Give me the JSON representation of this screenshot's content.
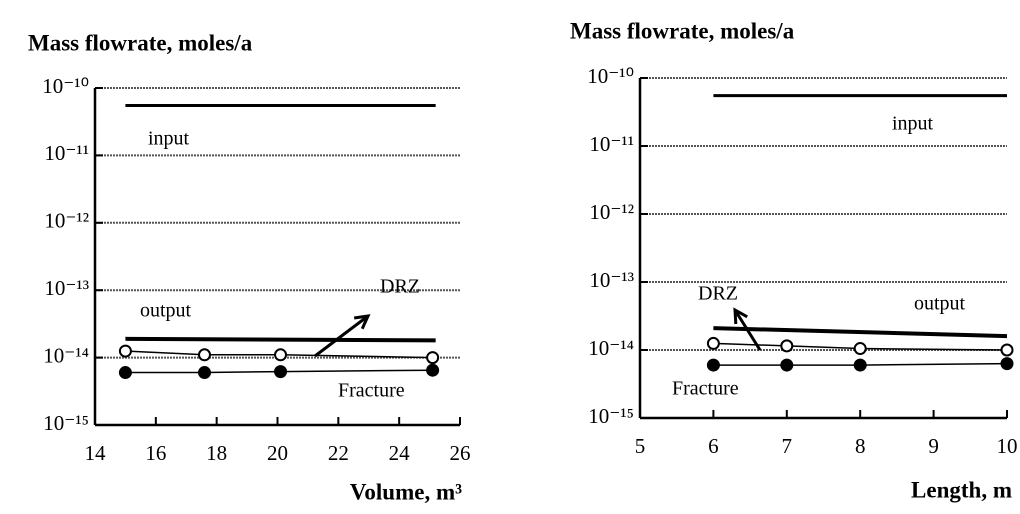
{
  "chart_data": [
    {
      "type": "line",
      "title": "Mass flowrate,  moles/a",
      "xlabel": "Volume, m³",
      "xlim": [
        14,
        26
      ],
      "xticks": [
        14,
        16,
        18,
        20,
        22,
        24,
        26
      ],
      "ylim": [
        1e-15,
        1e-10
      ],
      "ylog": true,
      "grid": true,
      "yticks": [
        {
          "value": 1e-15,
          "label": "10⁻¹⁵"
        },
        {
          "value": 1e-14,
          "label": "10⁻¹⁴"
        },
        {
          "value": 1e-13,
          "label": "10⁻¹³"
        },
        {
          "value": 1e-12,
          "label": "10⁻¹²"
        },
        {
          "value": 1e-11,
          "label": "10⁻¹¹"
        },
        {
          "value": 1e-10,
          "label": "10⁻¹⁰"
        }
      ],
      "series": [
        {
          "name": "input",
          "color": "#000000",
          "marker": "none",
          "x": [
            15,
            25.2
          ],
          "values": [
            5.5e-11,
            5.5e-11
          ]
        },
        {
          "name": "output",
          "color": "#000000",
          "marker": "none",
          "x": [
            15,
            25.2
          ],
          "values": [
            1.9e-14,
            1.8e-14
          ]
        },
        {
          "name": "DRZ",
          "color": "#000000",
          "marker": "open",
          "x": [
            15,
            17.6,
            20.1,
            25.1
          ],
          "values": [
            1.25e-14,
            1.1e-14,
            1.1e-14,
            1e-14
          ]
        },
        {
          "name": "Fracture",
          "color": "#000000",
          "marker": "filled",
          "x": [
            15,
            17.6,
            20.1,
            25.1
          ],
          "values": [
            6e-15,
            6e-15,
            6.2e-15,
            6.5e-15
          ]
        }
      ]
    },
    {
      "type": "line",
      "title": "Mass flowrate,  moles/a",
      "xlabel": "Length,  m",
      "xlim": [
        5,
        10
      ],
      "xticks": [
        5,
        6,
        7,
        8,
        9,
        10
      ],
      "ylim": [
        1e-15,
        1e-10
      ],
      "ylog": true,
      "grid": true,
      "yticks": [
        {
          "value": 1e-15,
          "label": "10⁻¹⁵"
        },
        {
          "value": 1e-14,
          "label": "10⁻¹⁴"
        },
        {
          "value": 1e-13,
          "label": "10⁻¹³"
        },
        {
          "value": 1e-12,
          "label": "10⁻¹²"
        },
        {
          "value": 1e-11,
          "label": "10⁻¹¹"
        },
        {
          "value": 1e-10,
          "label": "10⁻¹⁰"
        }
      ],
      "series": [
        {
          "name": "input",
          "color": "#000000",
          "marker": "none",
          "x": [
            6,
            10
          ],
          "values": [
            5.5e-11,
            5.5e-11
          ]
        },
        {
          "name": "output",
          "color": "#000000",
          "marker": "none",
          "x": [
            6,
            10
          ],
          "values": [
            2.1e-14,
            1.6e-14
          ]
        },
        {
          "name": "DRZ",
          "color": "#000000",
          "marker": "open",
          "x": [
            6,
            7,
            8,
            10
          ],
          "values": [
            1.25e-14,
            1.15e-14,
            1.05e-14,
            1e-14
          ]
        },
        {
          "name": "Fracture",
          "color": "#000000",
          "marker": "filled",
          "x": [
            6,
            7,
            8,
            10
          ],
          "values": [
            6e-15,
            6e-15,
            6e-15,
            6.3e-15
          ]
        }
      ]
    }
  ]
}
